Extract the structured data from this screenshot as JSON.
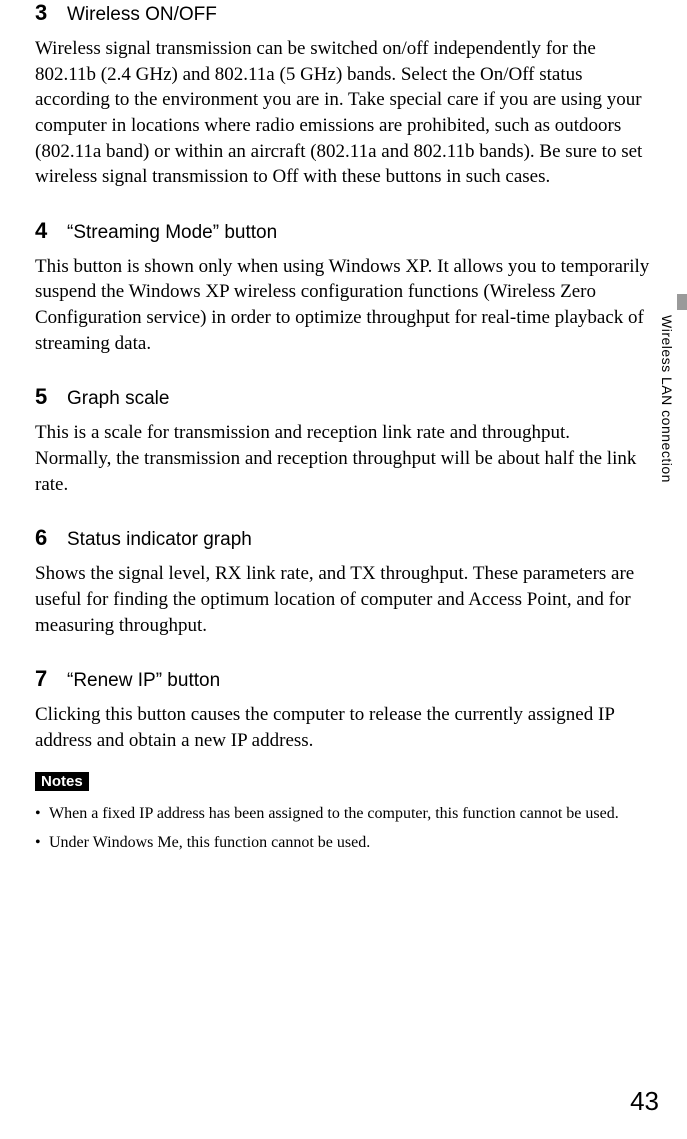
{
  "sections": [
    {
      "num": "3",
      "title": "Wireless ON/OFF",
      "body": "Wireless signal transmission can be switched on/off independently for the 802.11b (2.4 GHz) and 802.11a (5 GHz) bands. Select the On/Off status according to the environment you are in. Take special care if you are using your computer in locations where radio emissions are prohibited, such as outdoors (802.11a band) or within an aircraft (802.11a and 802.11b bands). Be sure to set wireless signal transmission to Off with these buttons in such cases."
    },
    {
      "num": "4",
      "title": "“Streaming Mode” button",
      "body": "This button is shown only when using Windows XP. It allows you to temporarily suspend the Windows XP wireless configuration functions (Wireless Zero Configuration service) in order to optimize throughput for real-time playback of streaming data."
    },
    {
      "num": "5",
      "title": "Graph scale",
      "body": "This is a scale for transmission and reception link rate and throughput. Normally, the transmission and reception throughput will be about half the link rate."
    },
    {
      "num": "6",
      "title": "Status indicator graph",
      "body": "Shows the signal level, RX link rate, and TX throughput. These parameters are useful for finding the optimum location of computer and Access Point, and for measuring throughput."
    },
    {
      "num": "7",
      "title": "“Renew IP” button",
      "body": "Clicking this button causes the computer to release the currently assigned IP address and obtain a new IP address."
    }
  ],
  "notes_label": "Notes",
  "notes": [
    "When a fixed IP address has been assigned to the computer, this function cannot be used.",
    "Under Windows Me, this function cannot be used."
  ],
  "side_label": "Wireless LAN connection",
  "page_number": "43",
  "colors": {
    "background": "#ffffff",
    "text": "#000000",
    "tab": "#9a9a9a",
    "notes_bg": "#000000",
    "notes_fg": "#ffffff"
  }
}
